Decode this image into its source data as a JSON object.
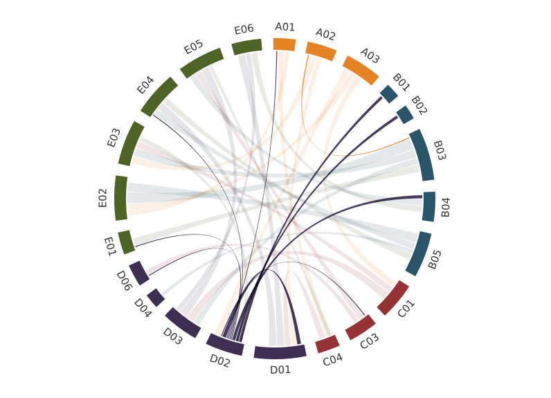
{
  "groups": [
    {
      "id": "A01",
      "label": "A01",
      "color": "#E68324",
      "size": 3
    },
    {
      "id": "A02",
      "label": "A02",
      "color": "#E68324",
      "size": 4
    },
    {
      "id": "A03",
      "label": "A03",
      "color": "#E68324",
      "size": 5
    },
    {
      "id": "B01",
      "label": "B01",
      "color": "#2A5467",
      "size": 2
    },
    {
      "id": "B02",
      "label": "B02",
      "color": "#2A5467",
      "size": 2
    },
    {
      "id": "B03",
      "label": "B03",
      "color": "#2A5467",
      "size": 7
    },
    {
      "id": "B04",
      "label": "B04",
      "color": "#2A5467",
      "size": 4
    },
    {
      "id": "B05",
      "label": "B05",
      "color": "#2A5467",
      "size": 6
    },
    {
      "id": "C01",
      "label": "C01",
      "color": "#943234",
      "size": 5
    },
    {
      "id": "C03",
      "label": "C03",
      "color": "#943234",
      "size": 4
    },
    {
      "id": "C04",
      "label": "C04",
      "color": "#943234",
      "size": 3
    },
    {
      "id": "D01",
      "label": "D01",
      "color": "#3D2E52",
      "size": 7
    },
    {
      "id": "D02",
      "label": "D02",
      "color": "#3D2E52",
      "size": 5
    },
    {
      "id": "D03",
      "label": "D03",
      "color": "#3D2E52",
      "size": 5
    },
    {
      "id": "D04",
      "label": "D04",
      "color": "#3D2E52",
      "size": 2
    },
    {
      "id": "D06",
      "label": "D06",
      "color": "#3D2E52",
      "size": 3
    },
    {
      "id": "E01",
      "label": "E01",
      "color": "#4E6326",
      "size": 3
    },
    {
      "id": "E02",
      "label": "E02",
      "color": "#4E6326",
      "size": 6
    },
    {
      "id": "E03",
      "label": "E03",
      "color": "#4E6326",
      "size": 6
    },
    {
      "id": "E04",
      "label": "E04",
      "color": "#4E6326",
      "size": 6
    },
    {
      "id": "E05",
      "label": "E05",
      "color": "#4E6326",
      "size": 6
    },
    {
      "id": "E06",
      "label": "E06",
      "color": "#4E6326",
      "size": 4
    }
  ],
  "links": [
    {
      "source": "D02",
      "target": "B01",
      "value": 0.45,
      "highlight": true
    },
    {
      "source": "D02",
      "target": "B02",
      "value": 0.45,
      "highlight": true
    },
    {
      "source": "D02",
      "target": "B04",
      "value": 0.5,
      "highlight": true
    },
    {
      "source": "D02",
      "target": "E04",
      "value": 0.1,
      "highlight": true
    },
    {
      "source": "D02",
      "target": "E01",
      "value": 0.12,
      "highlight": true
    },
    {
      "source": "D02",
      "target": "D06",
      "value": 0.12,
      "highlight": true
    },
    {
      "source": "D02",
      "target": "A01",
      "value": 0.05,
      "highlight": true
    },
    {
      "source": "D02",
      "target": "D01",
      "value": 0.6,
      "highlight": true
    },
    {
      "source": "D02",
      "target": "C03",
      "value": 0.1,
      "highlight": true
    },
    {
      "source": "A02",
      "target": "B03",
      "value": 0.15,
      "highlight": true
    },
    {
      "source": "A01",
      "target": "C04",
      "value": 1.0,
      "highlight": false
    },
    {
      "source": "A01",
      "target": "E02",
      "value": 0.8,
      "highlight": false
    },
    {
      "source": "A02",
      "target": "E03",
      "value": 1.2,
      "highlight": false
    },
    {
      "source": "A02",
      "target": "D01",
      "value": 0.8,
      "highlight": false
    },
    {
      "source": "A03",
      "target": "D02",
      "value": 1.0,
      "highlight": false
    },
    {
      "source": "A03",
      "target": "E02",
      "value": 1.0,
      "highlight": false
    },
    {
      "source": "A03",
      "target": "C01",
      "value": 1.0,
      "highlight": false
    },
    {
      "source": "B03",
      "target": "E02",
      "value": 1.8,
      "highlight": false
    },
    {
      "source": "B03",
      "target": "E03",
      "value": 1.3,
      "highlight": false
    },
    {
      "source": "B03",
      "target": "D03",
      "value": 1.0,
      "highlight": false
    },
    {
      "source": "B04",
      "target": "E05",
      "value": 1.0,
      "highlight": false
    },
    {
      "source": "B05",
      "target": "E02",
      "value": 1.5,
      "highlight": false
    },
    {
      "source": "B05",
      "target": "E04",
      "value": 1.0,
      "highlight": false
    },
    {
      "source": "B05",
      "target": "D04",
      "value": 0.6,
      "highlight": false
    },
    {
      "source": "C01",
      "target": "E03",
      "value": 1.0,
      "highlight": false
    },
    {
      "source": "C01",
      "target": "D03",
      "value": 1.3,
      "highlight": false
    },
    {
      "source": "C03",
      "target": "E05",
      "value": 1.0,
      "highlight": false
    },
    {
      "source": "C03",
      "target": "D06",
      "value": 0.8,
      "highlight": false
    },
    {
      "source": "C04",
      "target": "D01",
      "value": 1.0,
      "highlight": false
    },
    {
      "source": "D01",
      "target": "E06",
      "value": 1.2,
      "highlight": false
    },
    {
      "source": "D01",
      "target": "E04",
      "value": 1.2,
      "highlight": false
    },
    {
      "source": "D03",
      "target": "E05",
      "value": 1.2,
      "highlight": false
    },
    {
      "source": "D03",
      "target": "E06",
      "value": 0.8,
      "highlight": false
    },
    {
      "source": "E01",
      "target": "B03",
      "value": 1.2,
      "highlight": false
    },
    {
      "source": "E04",
      "target": "B05",
      "value": 1.0,
      "highlight": false
    },
    {
      "source": "E05",
      "target": "C04",
      "value": 0.6,
      "highlight": false
    },
    {
      "source": "E06",
      "target": "B04",
      "value": 1.0,
      "highlight": false
    },
    {
      "source": "E03",
      "target": "D02",
      "value": 0.8,
      "highlight": false
    }
  ]
}
